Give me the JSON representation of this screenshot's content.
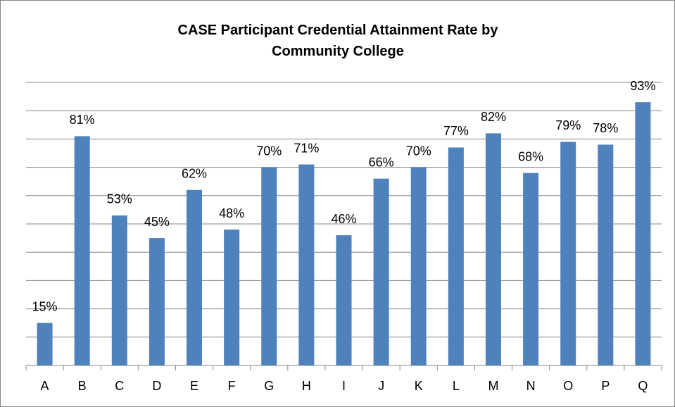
{
  "chart_data": {
    "type": "bar",
    "title": "CASE Participant Credential Attainment Rate by Community College",
    "categories": [
      "A",
      "B",
      "C",
      "D",
      "E",
      "F",
      "G",
      "H",
      "I",
      "J",
      "K",
      "L",
      "M",
      "N",
      "O",
      "P",
      "Q"
    ],
    "values": [
      15,
      81,
      53,
      45,
      62,
      48,
      70,
      71,
      46,
      66,
      70,
      77,
      82,
      68,
      79,
      78,
      93
    ],
    "value_labels": [
      "15%",
      "81%",
      "53%",
      "45%",
      "62%",
      "48%",
      "70%",
      "71%",
      "46%",
      "66%",
      "70%",
      "77%",
      "82%",
      "68%",
      "79%",
      "78%",
      "93%"
    ],
    "color": "#4f81bd",
    "ylim": [
      0,
      100
    ],
    "yticks": [
      0,
      10,
      20,
      30,
      40,
      50,
      60,
      70,
      80,
      90,
      100
    ],
    "grid": true
  }
}
